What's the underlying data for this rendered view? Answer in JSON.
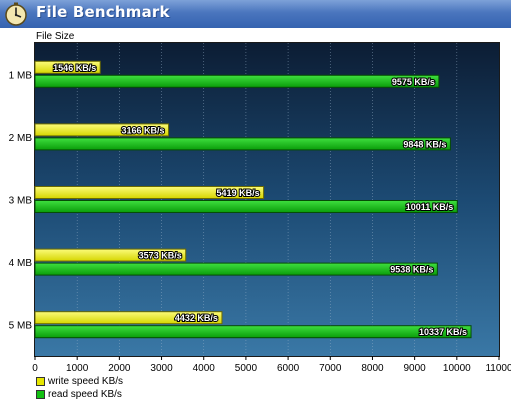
{
  "window": {
    "title": "File Benchmark"
  },
  "colors": {
    "write": "#e6e600",
    "read": "#12c012"
  },
  "chart_data": {
    "type": "bar",
    "orientation": "horizontal",
    "ylabel": "File Size",
    "categories": [
      "1 MB",
      "2 MB",
      "3 MB",
      "4 MB",
      "5 MB"
    ],
    "series": [
      {
        "name": "write speed KB/s",
        "values": [
          1546,
          3166,
          5419,
          3573,
          4432
        ],
        "labels": [
          "1546 KB/s",
          "3166 KB/s",
          "5419 KB/s",
          "3573 KB/s",
          "4432 KB/s"
        ]
      },
      {
        "name": "read speed KB/s",
        "values": [
          9575,
          9848,
          10011,
          9538,
          10337
        ],
        "labels": [
          "9575 KB/s",
          "9848 KB/s",
          "10011 KB/s",
          "9538 KB/s",
          "10337 KB/s"
        ]
      }
    ],
    "xlim": [
      0,
      11000
    ],
    "xticks": [
      0,
      1000,
      2000,
      3000,
      4000,
      5000,
      6000,
      7000,
      8000,
      9000,
      10000,
      11000
    ],
    "xtick_labels": [
      "0",
      "1000",
      "2000",
      "3000",
      "4000",
      "5000",
      "6000",
      "7000",
      "8000",
      "9000",
      "10000",
      "11000"
    ],
    "grid": true,
    "legend_position": "bottom-left"
  }
}
